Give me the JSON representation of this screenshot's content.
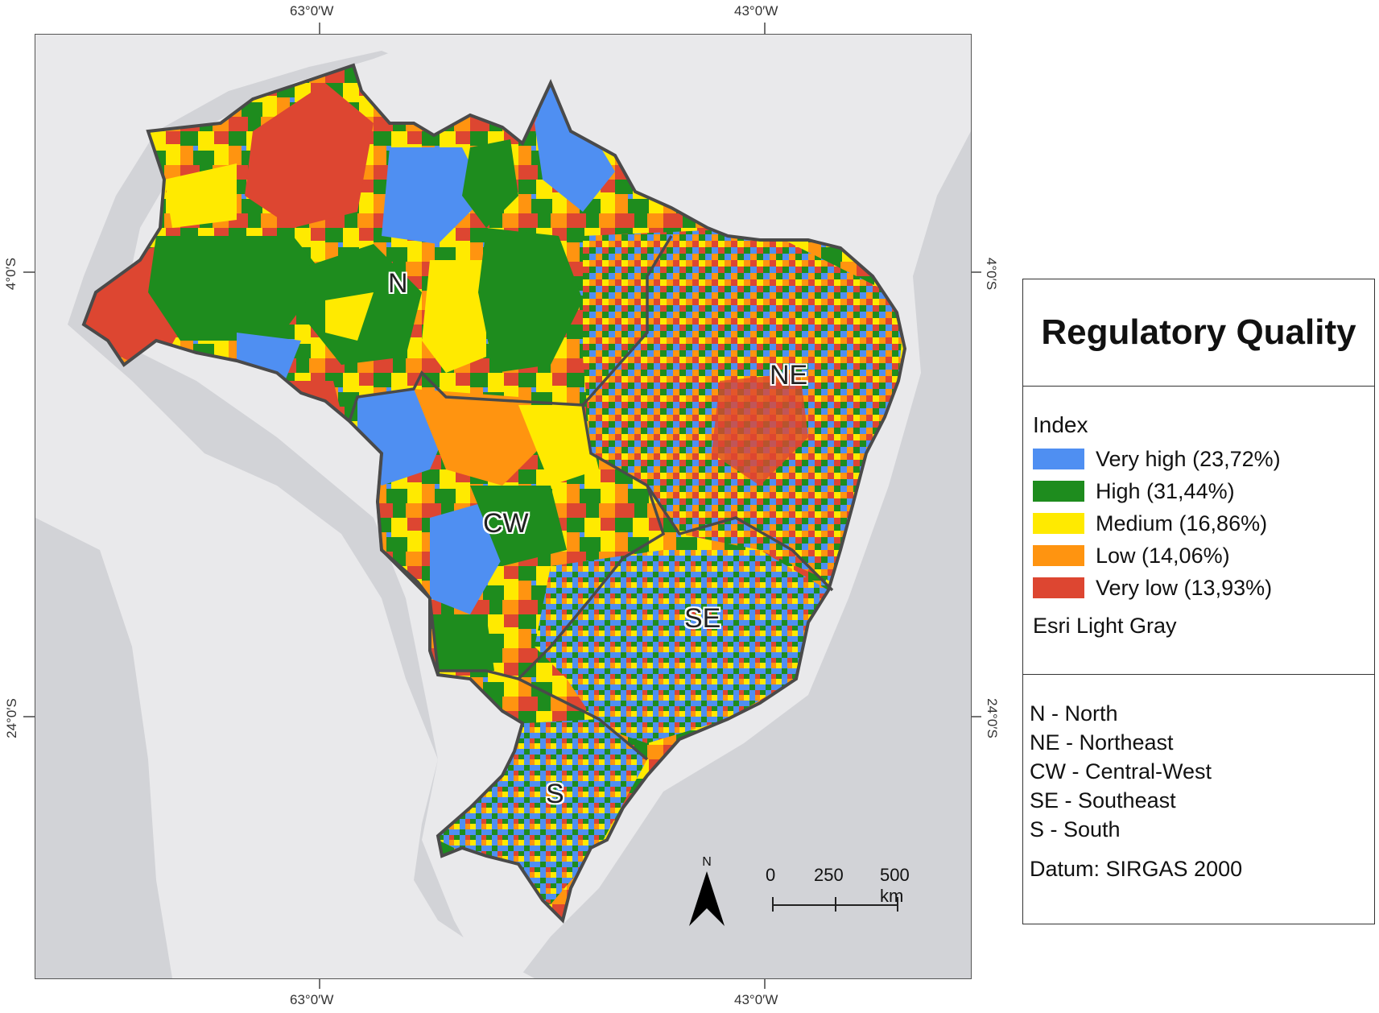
{
  "coords": {
    "top_left_lon": "63°0′W",
    "top_right_lon": "43°0′W",
    "bottom_left_lon": "63°0′W",
    "bottom_right_lon": "43°0′W",
    "left_upper_lat": "4°0′S",
    "left_lower_lat": "24°0′S",
    "right_upper_lat": "4°0′S",
    "right_lower_lat": "24°0′S"
  },
  "regions": {
    "n": "N",
    "ne": "NE",
    "cw": "CW",
    "se": "SE",
    "s": "S"
  },
  "legend": {
    "title": "Regulatory Quality",
    "index_heading": "Index",
    "items": [
      {
        "label": "Very high (23,72%)",
        "color": "#4f8ff2"
      },
      {
        "label": "High (31,44%)",
        "color": "#1e8c1e"
      },
      {
        "label": "Medium (16,86%)",
        "color": "#ffea00"
      },
      {
        "label": "Low (14,06%)",
        "color": "#ff9410"
      },
      {
        "label": "Very low (13,93%)",
        "color": "#dd4631"
      }
    ],
    "basemap": "Esri Light Gray",
    "abbreviations": [
      "N - North",
      "NE - Northeast",
      "CW - Central-West",
      "SE - Southeast",
      "S - South"
    ],
    "datum": "Datum: SIRGAS 2000"
  },
  "north_arrow": "N",
  "scale_bar": {
    "ticks": [
      "0",
      "250",
      "500 km"
    ]
  }
}
